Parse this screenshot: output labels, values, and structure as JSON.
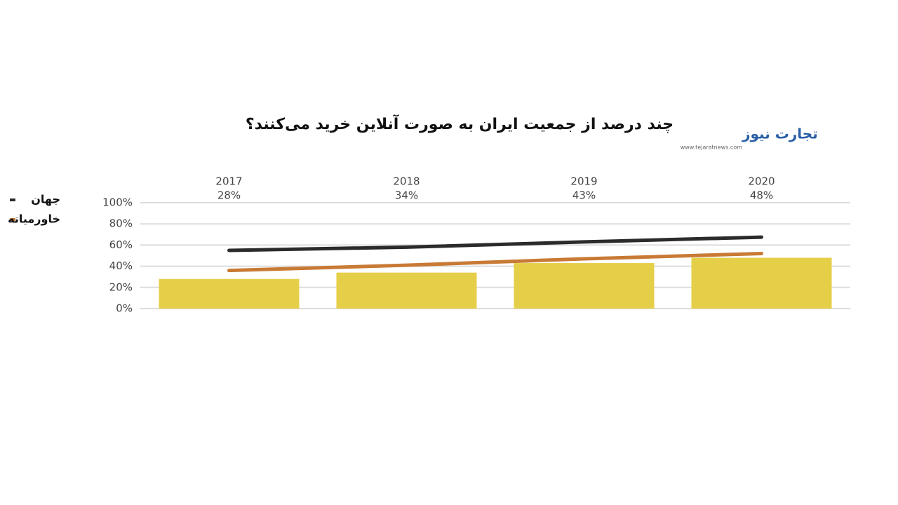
{
  "chart_data": {
    "type": "bar",
    "title": "چند درصد از جمعیت ایران به صورت آنلاین خرید می‌کنند؟",
    "logo": "تجارت نیوز",
    "logo_url": "www.tejaratnews.com",
    "categories": [
      "2017",
      "2018",
      "2019",
      "2020"
    ],
    "values": [
      28,
      34,
      43,
      48
    ],
    "value_labels": [
      "28%",
      "34%",
      "43%",
      "48%"
    ],
    "color": "#e6cf48",
    "series": [
      {
        "name": "جهان",
        "type": "line",
        "color": "#2b2b2b",
        "values": [
          55,
          58,
          63,
          67.5
        ]
      },
      {
        "name": "خاورمیانه",
        "type": "line",
        "color": "#c87a35",
        "values": [
          36,
          41,
          47,
          52
        ]
      }
    ],
    "ylim": [
      0,
      100
    ],
    "yticks": [
      {
        "value": 0,
        "label": "0%"
      },
      {
        "value": 20,
        "label": "20%"
      },
      {
        "value": 40,
        "label": "40%"
      },
      {
        "value": 60,
        "label": "60%"
      },
      {
        "value": 80,
        "label": "80%"
      },
      {
        "value": 100,
        "label": "100%"
      }
    ],
    "grid": true,
    "legend": "left"
  }
}
